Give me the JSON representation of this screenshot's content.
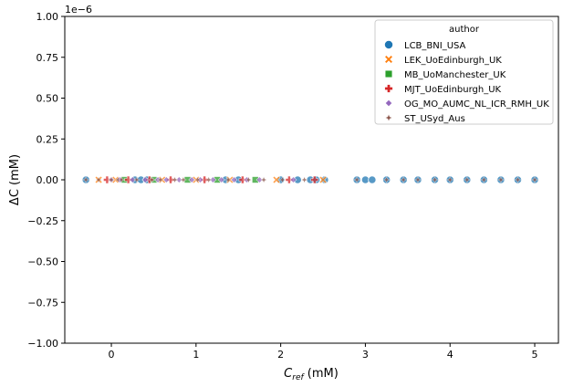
{
  "chart_data": {
    "type": "scatter",
    "title": "",
    "xlabel_main": "C",
    "xlabel_sub": "ref",
    "xlabel_unit": " (mM)",
    "ylabel": "ΔC (mM)",
    "offset_text": "1e−6",
    "xlim": [
      -0.55,
      5.28
    ],
    "ylim": [
      -1.0,
      1.0
    ],
    "y_scale_factor": 1e-06,
    "xticks": [
      0,
      1,
      2,
      3,
      4,
      5
    ],
    "yticks": [
      -1.0,
      -0.75,
      -0.5,
      -0.25,
      0.0,
      0.25,
      0.5,
      0.75,
      1.0
    ],
    "ytick_labels": [
      "−1.00",
      "−0.75",
      "−0.50",
      "−0.25",
      "0.00",
      "0.25",
      "0.50",
      "0.75",
      "1.00"
    ],
    "grid": false,
    "legend": {
      "title": "author",
      "placement": "top-right",
      "entries": [
        {
          "label": "LCB_BNI_USA",
          "marker": "circle",
          "color": "#1f77b4"
        },
        {
          "label": "LEK_UoEdinburgh_UK",
          "marker": "x",
          "color": "#ff7f0e"
        },
        {
          "label": "MB_UoManchester_UK",
          "marker": "square",
          "color": "#2ca02c"
        },
        {
          "label": "MJT_UoEdinburgh_UK",
          "marker": "plus",
          "color": "#d62728"
        },
        {
          "label": "OG_MO_AUMC_NL_ICR_RMH_UK",
          "marker": "diamond",
          "color": "#9467bd"
        },
        {
          "label": "ST_USyd_Aus",
          "marker": "star",
          "color": "#8c564b"
        }
      ]
    },
    "series": [
      {
        "name": "LCB_BNI_USA",
        "marker": "circle",
        "color": "#1f77b4",
        "x": [
          -0.3,
          0.28,
          0.35,
          0.42,
          1.35,
          1.5,
          2.0,
          2.2,
          2.35,
          2.42,
          2.52,
          2.9,
          3.0,
          3.08,
          3.25,
          3.45,
          3.62,
          3.82,
          4.0,
          4.2,
          4.4,
          4.6,
          4.8,
          5.0
        ],
        "y": [
          0,
          0,
          0,
          0,
          0,
          0,
          0,
          0,
          0,
          0,
          0,
          0,
          0,
          0,
          0,
          0,
          0,
          0,
          0,
          0,
          0,
          0,
          0,
          0
        ]
      },
      {
        "name": "LEK_UoEdinburgh_UK",
        "marker": "x",
        "color": "#ff7f0e",
        "x": [
          -0.15,
          0.05,
          0.6,
          1.0,
          1.4,
          1.95,
          2.5
        ],
        "y": [
          0,
          0,
          0,
          0,
          0,
          0,
          0
        ]
      },
      {
        "name": "MB_UoManchester_UK",
        "marker": "square",
        "color": "#2ca02c",
        "x": [
          0.15,
          0.5,
          0.9,
          1.25,
          1.7
        ],
        "y": [
          0,
          0,
          0,
          0,
          0
        ]
      },
      {
        "name": "MJT_UoEdinburgh_UK",
        "marker": "plus",
        "color": "#d62728",
        "x": [
          -0.05,
          0.2,
          0.45,
          0.7,
          1.1,
          1.55,
          2.1,
          2.4
        ],
        "y": [
          0,
          0,
          0,
          0,
          0,
          0,
          0,
          0
        ]
      },
      {
        "name": "OG_MO_AUMC_NL_ICR_RMH_UK",
        "marker": "diamond",
        "color": "#9467bd",
        "x": [
          0.0,
          0.1,
          0.25,
          0.4,
          0.55,
          0.65,
          0.8,
          0.95,
          1.05,
          1.2,
          1.3,
          1.45,
          1.6,
          1.75,
          2.15
        ],
        "y": [
          0,
          0,
          0,
          0,
          0,
          0,
          0,
          0,
          0,
          0,
          0,
          0,
          0,
          0,
          0
        ]
      },
      {
        "name": "ST_USyd_Aus",
        "marker": "star",
        "color": "#8c564b",
        "x": [
          -0.3,
          -0.15,
          0.0,
          0.08,
          0.12,
          0.3,
          0.48,
          0.58,
          0.75,
          0.85,
          1.02,
          1.15,
          1.38,
          1.62,
          1.8,
          2.02,
          2.28,
          2.9,
          3.25,
          3.45,
          3.62,
          3.82,
          4.0,
          4.2,
          4.4,
          4.6,
          4.8,
          5.0
        ],
        "y": [
          0,
          0,
          0,
          0,
          0,
          0,
          0,
          0,
          0,
          0,
          0,
          0,
          0,
          0,
          0,
          0,
          0,
          0,
          0,
          0,
          0,
          0,
          0,
          0,
          0,
          0,
          0,
          0
        ]
      }
    ]
  }
}
